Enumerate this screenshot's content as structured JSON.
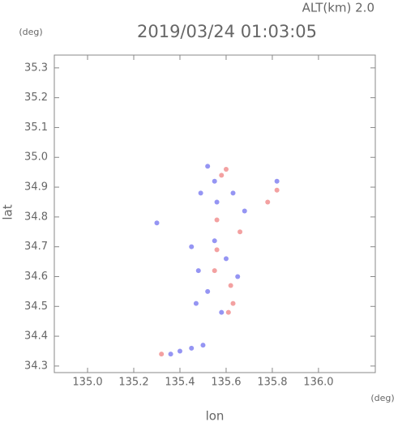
{
  "chart_data": {
    "type": "scatter",
    "title": "2019/03/24 01:03:05",
    "subtitle": "ALT(km) 2.0",
    "x_label": "lon",
    "y_label": "lat",
    "x_unit": "(deg)",
    "y_unit": "(deg)",
    "xlim": [
      134.856,
      136.246
    ],
    "ylim": [
      34.278,
      35.343
    ],
    "xticks": [
      {
        "value": 135.0,
        "label": "135.0"
      },
      135.2,
      135.4,
      135.6,
      135.8,
      {
        "value": 136.0,
        "label": "136.0"
      }
    ],
    "yticks": [
      35.3,
      35.2,
      35.1,
      {
        "value": 35.0,
        "label": "35.0"
      },
      34.9,
      34.8,
      34.7,
      34.6,
      34.5,
      34.4,
      34.3
    ],
    "series": [
      {
        "color": "#7b7bf0",
        "x": [
          135.52,
          135.55,
          135.49,
          135.56,
          135.63,
          135.68,
          135.82,
          135.45,
          135.48,
          135.6,
          135.52,
          135.47,
          135.58,
          135.4,
          135.45,
          135.5,
          135.36,
          135.3,
          135.65,
          135.55
        ],
        "y": [
          34.97,
          34.92,
          34.88,
          34.85,
          34.88,
          34.82,
          34.92,
          34.7,
          34.62,
          34.66,
          34.55,
          34.51,
          34.48,
          34.35,
          34.36,
          34.37,
          34.34,
          34.78,
          34.6,
          34.72
        ]
      },
      {
        "color": "#f08a8a",
        "x": [
          135.58,
          135.6,
          135.82,
          135.66,
          135.56,
          135.62,
          135.55,
          135.61,
          135.63,
          135.32,
          135.56,
          135.78
        ],
        "y": [
          34.94,
          34.96,
          34.89,
          34.75,
          34.79,
          34.57,
          34.62,
          34.48,
          34.51,
          34.34,
          34.69,
          34.85
        ]
      }
    ]
  }
}
